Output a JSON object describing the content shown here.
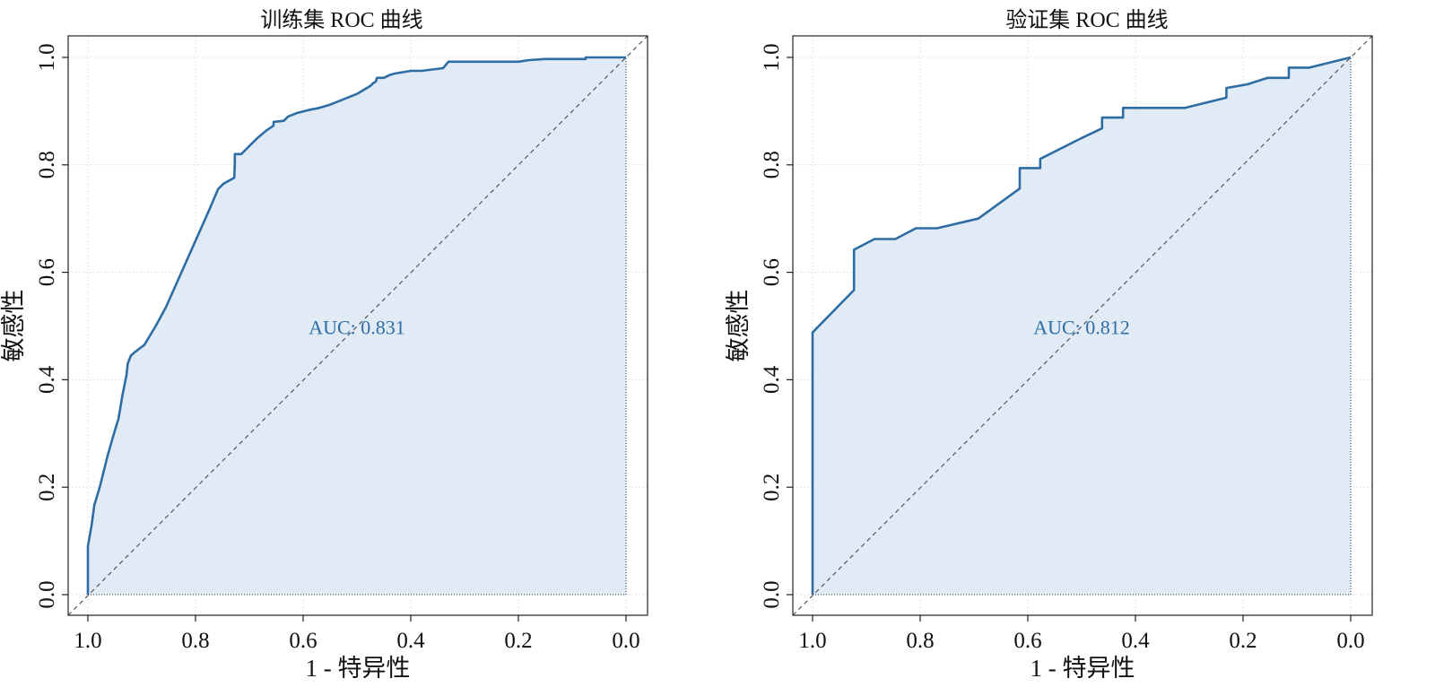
{
  "chart_data": [
    {
      "type": "line",
      "title": "训练集 ROC 曲线",
      "xlabel": "1 - 特异性",
      "ylabel": "敏感性",
      "xlim": [
        1.0,
        0.0
      ],
      "ylim": [
        0.0,
        1.0
      ],
      "x_ticks": [
        "1.0",
        "0.8",
        "0.6",
        "0.4",
        "0.2",
        "0.0"
      ],
      "y_ticks": [
        "0.0",
        "0.2",
        "0.4",
        "0.6",
        "0.8",
        "1.0"
      ],
      "grid": true,
      "annotation": "AUC: 0.831",
      "line_color": "#2e6da4",
      "fill_color": "#dbe8f4",
      "series": [
        {
          "x": [
            1.0,
            1.0,
            0.993,
            0.988,
            0.978,
            0.963,
            0.953,
            0.943,
            0.936,
            0.928,
            0.926,
            0.92,
            0.912,
            0.903,
            0.895,
            0.892,
            0.874,
            0.855,
            0.835,
            0.815,
            0.795,
            0.775,
            0.758,
            0.748,
            0.728,
            0.727,
            0.727,
            0.715,
            0.7,
            0.685,
            0.667,
            0.655,
            0.655,
            0.636,
            0.628,
            0.61,
            0.59,
            0.57,
            0.55,
            0.5,
            0.475,
            0.47,
            0.465,
            0.463,
            0.46,
            0.45,
            0.44,
            0.43,
            0.4,
            0.38,
            0.34,
            0.33,
            0.3,
            0.2,
            0.18,
            0.15,
            0.12,
            0.075,
            0.075,
            0.05,
            0.0
          ],
          "y": [
            0.0,
            0.09,
            0.13,
            0.167,
            0.2,
            0.26,
            0.295,
            0.328,
            0.37,
            0.41,
            0.43,
            0.445,
            0.452,
            0.459,
            0.465,
            0.47,
            0.5,
            0.535,
            0.58,
            0.625,
            0.67,
            0.715,
            0.755,
            0.765,
            0.776,
            0.8,
            0.82,
            0.82,
            0.835,
            0.85,
            0.865,
            0.873,
            0.88,
            0.882,
            0.89,
            0.897,
            0.902,
            0.906,
            0.912,
            0.932,
            0.947,
            0.952,
            0.955,
            0.962,
            0.962,
            0.962,
            0.967,
            0.97,
            0.975,
            0.975,
            0.98,
            0.992,
            0.992,
            0.992,
            0.995,
            0.997,
            0.997,
            0.997,
            1.0,
            1.0,
            1.0
          ]
        }
      ]
    },
    {
      "type": "line",
      "title": "验证集 ROC 曲线",
      "xlabel": "1 - 特异性",
      "ylabel": "敏感性",
      "xlim": [
        1.0,
        0.0
      ],
      "ylim": [
        0.0,
        1.0
      ],
      "x_ticks": [
        "1.0",
        "0.8",
        "0.6",
        "0.4",
        "0.2",
        "0.0"
      ],
      "y_ticks": [
        "0.0",
        "0.2",
        "0.4",
        "0.6",
        "0.8",
        "1.0"
      ],
      "grid": true,
      "annotation": "AUC: 0.812",
      "line_color": "#2e6da4",
      "fill_color": "#dbe8f4",
      "series": [
        {
          "x": [
            1.0,
            1.0,
            0.923,
            0.923,
            0.885,
            0.846,
            0.808,
            0.769,
            0.692,
            0.615,
            0.615,
            0.577,
            0.577,
            0.5,
            0.462,
            0.462,
            0.423,
            0.423,
            0.308,
            0.231,
            0.231,
            0.192,
            0.154,
            0.115,
            0.115,
            0.077,
            0.0
          ],
          "y": [
            0.0,
            0.488,
            0.567,
            0.642,
            0.662,
            0.662,
            0.682,
            0.682,
            0.7,
            0.756,
            0.794,
            0.794,
            0.811,
            0.85,
            0.868,
            0.888,
            0.888,
            0.906,
            0.906,
            0.925,
            0.943,
            0.95,
            0.962,
            0.962,
            0.981,
            0.981,
            1.0
          ]
        }
      ]
    }
  ]
}
